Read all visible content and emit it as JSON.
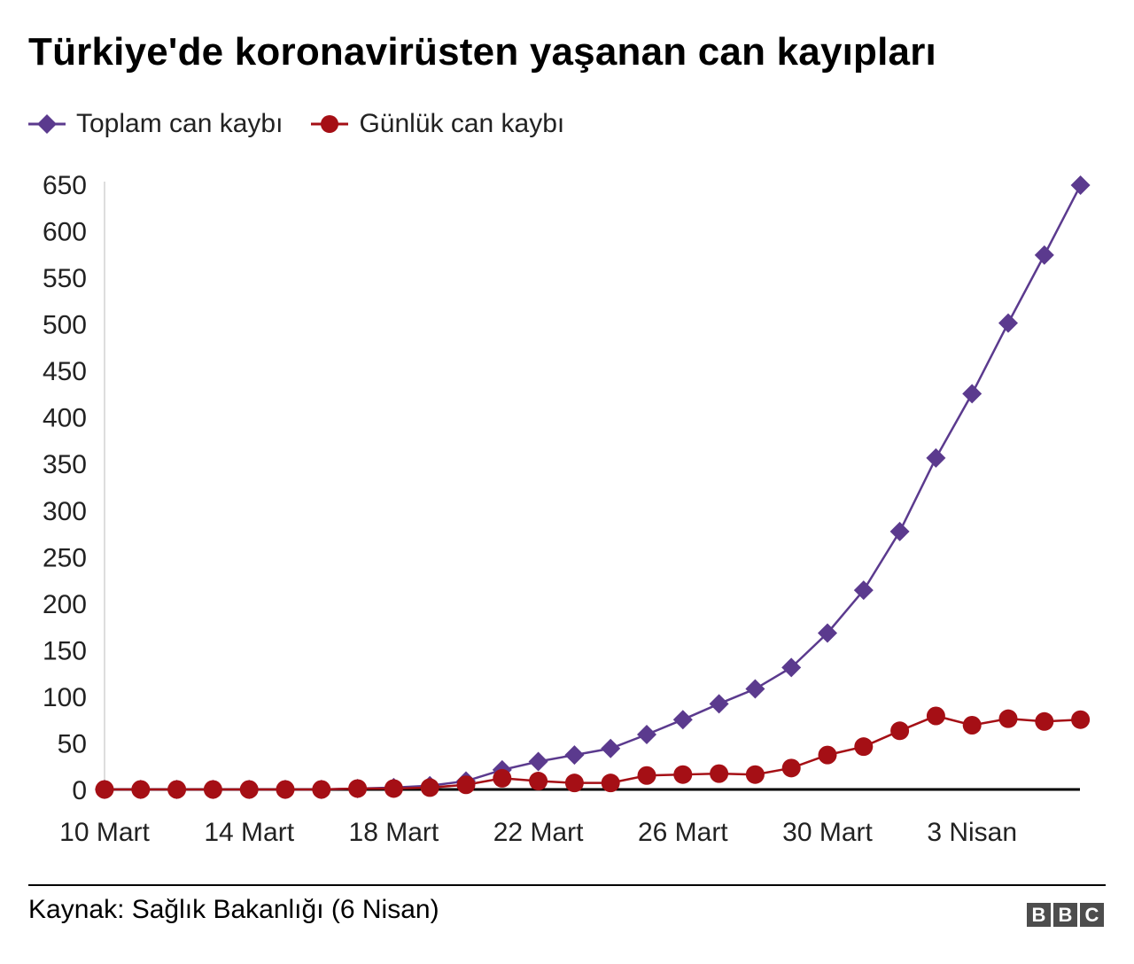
{
  "title": "Türkiye'de koronavirüsten yaşanan can kayıpları",
  "source": "Kaynak: Sağlık Bakanlığı (6 Nisan)",
  "logo": [
    "B",
    "B",
    "C"
  ],
  "colors": {
    "total": "#5b3a8e",
    "daily": "#a50f15",
    "axis": "#000000",
    "yaxis_line": "#dddddd",
    "tick_text": "#222222"
  },
  "chart_data": {
    "type": "line",
    "x": [
      "10 Mart",
      "11 Mart",
      "12 Mart",
      "13 Mart",
      "14 Mart",
      "15 Mart",
      "16 Mart",
      "17 Mart",
      "18 Mart",
      "19 Mart",
      "20 Mart",
      "21 Mart",
      "22 Mart",
      "23 Mart",
      "24 Mart",
      "25 Mart",
      "26 Mart",
      "27 Mart",
      "28 Mart",
      "29 Mart",
      "30 Mart",
      "31 Mart",
      "1 Nisan",
      "2 Nisan",
      "3 Nisan",
      "4 Nisan",
      "5 Nisan",
      "6 Nisan"
    ],
    "xticks": [
      "10 Mart",
      "14 Mart",
      "18 Mart",
      "22 Mart",
      "26 Mart",
      "30 Mart",
      "3 Nisan"
    ],
    "ylim": [
      0,
      650
    ],
    "yticks": [
      0,
      50,
      100,
      150,
      200,
      250,
      300,
      350,
      400,
      450,
      500,
      550,
      600,
      650
    ],
    "series": [
      {
        "name": "Toplam can kaybı",
        "marker": "diamond",
        "values": [
          0,
          0,
          0,
          0,
          0,
          0,
          0,
          1,
          2,
          4,
          9,
          21,
          30,
          37,
          44,
          59,
          75,
          92,
          108,
          131,
          168,
          214,
          277,
          356,
          425,
          501,
          574,
          649
        ]
      },
      {
        "name": "Günlük can kaybı",
        "marker": "circle",
        "values": [
          0,
          0,
          0,
          0,
          0,
          0,
          0,
          1,
          1,
          2,
          5,
          12,
          9,
          7,
          7,
          15,
          16,
          17,
          16,
          23,
          37,
          46,
          63,
          79,
          69,
          76,
          73,
          75
        ]
      }
    ]
  }
}
